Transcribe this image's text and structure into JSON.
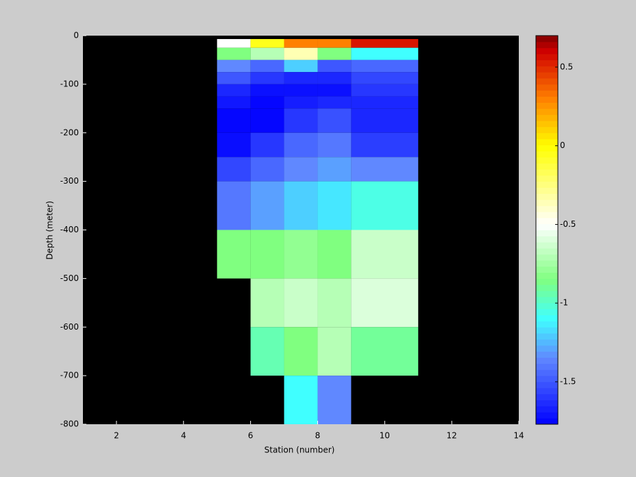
{
  "chart_data": {
    "type": "heatmap",
    "xlabel": "Station (number)",
    "ylabel": "Depth (meter)",
    "xlim": [
      1,
      14
    ],
    "xticks": [
      2,
      4,
      6,
      8,
      10,
      12,
      14
    ],
    "ylim": [
      -800,
      0
    ],
    "yticks": [
      0,
      -100,
      -200,
      -300,
      -400,
      -500,
      -600,
      -700,
      -800
    ],
    "x_edges": [
      5,
      6,
      7,
      8,
      9,
      11
    ],
    "y_edges": [
      -7,
      -25,
      -50,
      -75,
      -100,
      -125,
      -150,
      -200,
      -250,
      -300,
      -400,
      -500,
      -600,
      -700,
      -800
    ],
    "z": [
      [
        -0.5,
        -0.05,
        0.3,
        0.3,
        0.55
      ],
      [
        -0.85,
        -0.7,
        -0.35,
        -0.85,
        -1.1
      ],
      [
        -1.35,
        -1.45,
        -1.2,
        -1.5,
        -1.45
      ],
      [
        -1.5,
        -1.6,
        -1.65,
        -1.65,
        -1.55
      ],
      [
        -1.65,
        -1.72,
        -1.72,
        -1.72,
        -1.6
      ],
      [
        -1.7,
        -1.75,
        -1.68,
        -1.65,
        -1.65
      ],
      [
        -1.75,
        -1.75,
        -1.6,
        -1.52,
        -1.65
      ],
      [
        -1.73,
        -1.6,
        -1.45,
        -1.4,
        -1.58
      ],
      [
        -1.55,
        -1.45,
        -1.35,
        -1.3,
        -1.35
      ],
      [
        -1.4,
        -1.3,
        -1.2,
        -1.15,
        -1.05
      ],
      [
        -0.85,
        -0.85,
        -0.8,
        -0.85,
        -0.65
      ],
      [
        null,
        -0.7,
        -0.65,
        -0.7,
        -0.6
      ],
      [
        null,
        -0.95,
        -0.85,
        -0.7,
        -0.9
      ],
      [
        null,
        null,
        -1.1,
        -1.35,
        null
      ]
    ],
    "clim": [
      -1.77,
      0.7
    ],
    "cticks": [
      0.5,
      0,
      -0.5,
      -1,
      -1.5
    ],
    "colormap": [
      [
        -1.77,
        "#0000ff"
      ],
      [
        -1.35,
        "#6088ff"
      ],
      [
        -1.1,
        "#40ffff"
      ],
      [
        -0.85,
        "#80ff80"
      ],
      [
        -0.5,
        "#ffffff"
      ],
      [
        0,
        "#ffff00"
      ],
      [
        0.3,
        "#ff8000"
      ],
      [
        0.6,
        "#d00000"
      ],
      [
        0.7,
        "#800000"
      ]
    ],
    "missing_color": "#000000"
  }
}
